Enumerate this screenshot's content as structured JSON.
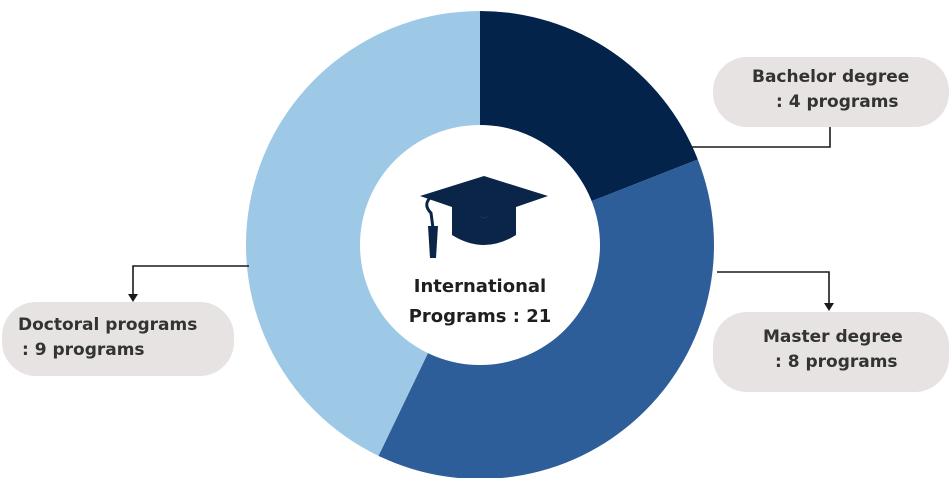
{
  "chart_data": {
    "type": "pie",
    "variant": "donut",
    "center_label": {
      "line1": "International",
      "line2": "Programs : 21"
    },
    "center_icon": "graduation-cap-icon",
    "total": 21,
    "slices": [
      {
        "key": "bachelor",
        "value": 4,
        "color": "#03234a",
        "label_line1": "Bachelor degree",
        "label_line2": ": 4 programs"
      },
      {
        "key": "master",
        "value": 8,
        "color": "#2e5e99",
        "label_line1": "Master degree",
        "label_line2": ": 8 programs"
      },
      {
        "key": "doctoral",
        "value": 9,
        "color": "#9dc9e6",
        "label_line1": "Doctoral programs",
        "label_line2": ": 9 programs"
      }
    ],
    "label_background": "#e6e3e2",
    "connector_color": "#1a1a1a"
  }
}
